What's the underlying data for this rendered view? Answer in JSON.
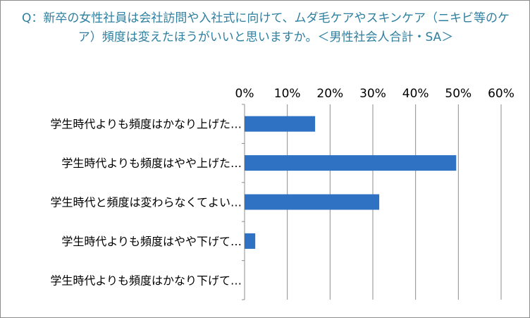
{
  "chart_data": {
    "type": "bar",
    "orientation": "horizontal",
    "title": "Q：新卒の女性社員は会社訪問や入社式に向けて、ムダ毛ケアやスキンケア（ニキビ等のケア）頻度は変えたほうがいいと思いますか。＜男性社会人合計・SA＞",
    "categories": [
      "学生時代よりも頻度はかなり上げた…",
      "学生時代よりも頻度はやや上げた…",
      "学生時代と頻度は変わらなくてよい…",
      "学生時代よりも頻度はやや下げて…",
      "学生時代よりも頻度はかなり下げて…"
    ],
    "values": [
      16.5,
      49.5,
      31.5,
      2.5,
      0
    ],
    "xlim": [
      0,
      60
    ],
    "xticks": [
      0,
      10,
      20,
      30,
      40,
      50,
      60
    ],
    "xtick_labels": [
      "0%",
      "10%",
      "20%",
      "30%",
      "40%",
      "50%",
      "60%"
    ],
    "xlabel": "",
    "ylabel": "",
    "bar_color": "#2f72c4",
    "grid": true,
    "axis_position": "top",
    "legend": "none"
  }
}
